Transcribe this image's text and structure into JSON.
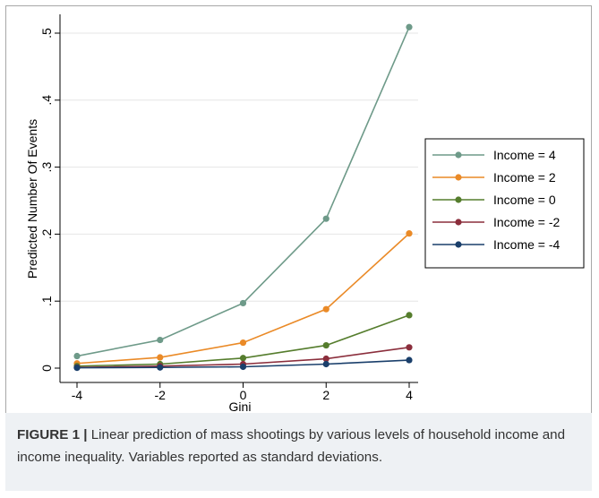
{
  "chart_data": {
    "type": "line",
    "x": [
      -4,
      -2,
      0,
      2,
      4
    ],
    "x_ticks": [
      "-4",
      "-2",
      "0",
      "2",
      "4"
    ],
    "y_ticks": [
      "0",
      ".1",
      ".2",
      ".3",
      ".4",
      ".5"
    ],
    "y_tick_values": [
      0,
      0.1,
      0.2,
      0.3,
      0.4,
      0.5
    ],
    "xlabel": "Gini",
    "ylabel": "Predicted Number Of Events",
    "xlim": [
      -4,
      4
    ],
    "ylim": [
      0,
      0.5
    ],
    "grid": true,
    "legend_position": "right",
    "series": [
      {
        "name": "Income = 4",
        "color": "#6e9a89",
        "values": [
          0.018,
          0.042,
          0.097,
          0.223,
          0.509
        ]
      },
      {
        "name": "Income = 2",
        "color": "#ea8a27",
        "values": [
          0.007,
          0.016,
          0.038,
          0.088,
          0.201
        ]
      },
      {
        "name": "Income = 0",
        "color": "#557d2d",
        "values": [
          0.003,
          0.006,
          0.015,
          0.034,
          0.079
        ]
      },
      {
        "name": "Income = -2",
        "color": "#8b2e3c",
        "values": [
          0.001,
          0.003,
          0.006,
          0.014,
          0.031
        ]
      },
      {
        "name": "Income = -4",
        "color": "#1a3f6b",
        "values": [
          0.0005,
          0.001,
          0.002,
          0.006,
          0.012
        ]
      }
    ]
  },
  "caption": {
    "label": "FIGURE 1 |",
    "text": " Linear prediction of mass shootings by various levels of household income and income inequality. Variables reported as standard deviations."
  }
}
